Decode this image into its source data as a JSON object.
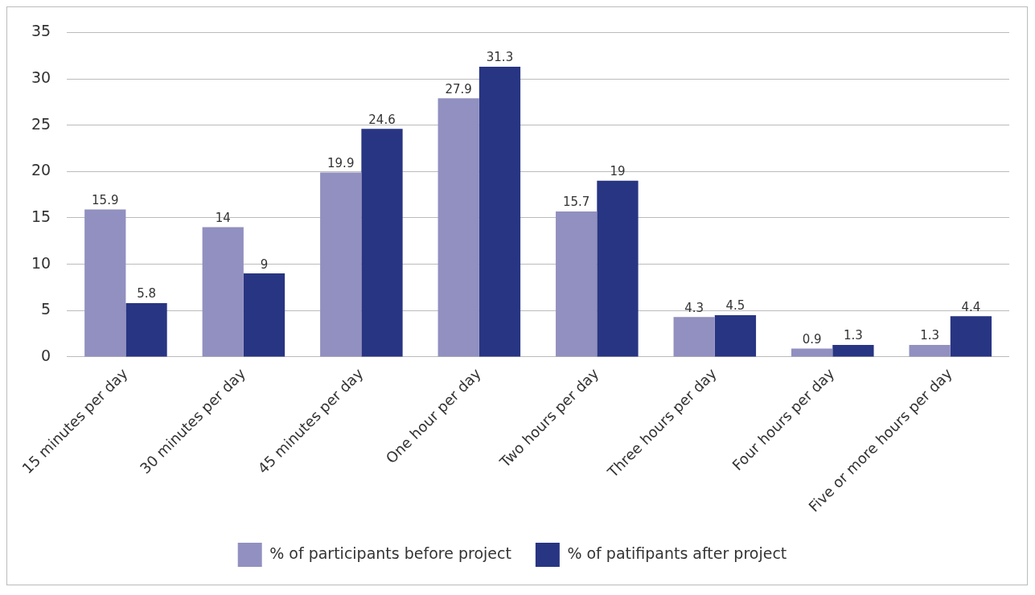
{
  "chart_data": {
    "type": "bar",
    "categories": [
      "15 minutes per day",
      "30 minutes per day",
      "45 minutes per day",
      "One hour per day",
      "Two hours per day",
      "Three hours per day",
      "Four hours per day",
      "Five or more hours per day"
    ],
    "series": [
      {
        "name": "% of participants before project",
        "color": "#9190c0",
        "values": [
          15.9,
          14,
          19.9,
          27.9,
          15.7,
          4.3,
          0.9,
          1.3
        ]
      },
      {
        "name": "% of patifipants after project",
        "color": "#283583",
        "values": [
          5.8,
          9,
          24.6,
          31.3,
          19,
          4.5,
          1.3,
          4.4
        ]
      }
    ],
    "ylim": [
      0,
      35
    ],
    "yticks": [
      0,
      5,
      10,
      15,
      20,
      25,
      30,
      35
    ],
    "grid": "y",
    "legend": "bottom",
    "data_labels": true
  }
}
